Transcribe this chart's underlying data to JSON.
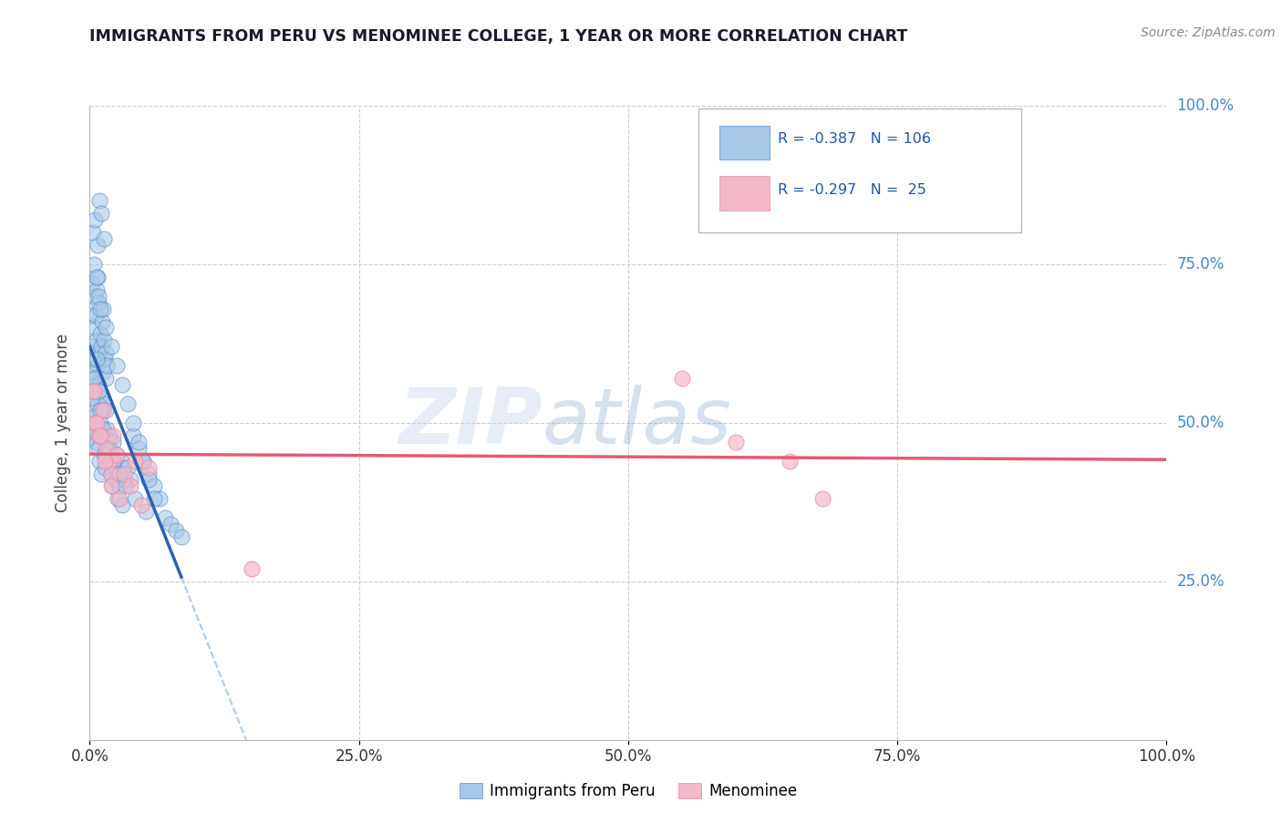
{
  "title": "IMMIGRANTS FROM PERU VS MENOMINEE COLLEGE, 1 YEAR OR MORE CORRELATION CHART",
  "source_text": "Source: ZipAtlas.com",
  "ylabel": "College, 1 year or more",
  "xlim": [
    0,
    100
  ],
  "ylim": [
    0,
    100
  ],
  "xticks": [
    0,
    25,
    50,
    75,
    100
  ],
  "xtick_labels": [
    "0.0%",
    "25.0%",
    "50.0%",
    "75.0%",
    "100.0%"
  ],
  "yticks": [
    0,
    25,
    50,
    75,
    100
  ],
  "ytick_labels_right": [
    "",
    "25.0%",
    "50.0%",
    "75.0%",
    "100.0%"
  ],
  "legend1_label": "Immigrants from Peru",
  "legend2_label": "Menominee",
  "R1": -0.387,
  "N1": 106,
  "R2": -0.297,
  "N2": 25,
  "blue_color": "#a8c8e8",
  "pink_color": "#f4b8c8",
  "blue_edge_color": "#5590c8",
  "pink_edge_color": "#e888a8",
  "blue_line_color": "#3060b0",
  "pink_line_color": "#e85878",
  "watermark_zip": "ZIP",
  "watermark_atlas": "atlas",
  "blue_scatter_x": [
    0.1,
    0.2,
    0.3,
    0.4,
    0.5,
    0.6,
    0.7,
    0.8,
    0.9,
    1.0,
    1.1,
    1.2,
    1.3,
    1.4,
    1.5,
    0.15,
    0.25,
    0.35,
    0.45,
    0.55,
    0.65,
    0.75,
    0.85,
    0.95,
    1.05,
    1.15,
    1.25,
    1.35,
    1.45,
    1.55,
    0.1,
    0.2,
    0.3,
    0.4,
    0.5,
    0.6,
    0.7,
    0.8,
    0.9,
    1.0,
    1.1,
    1.2,
    1.3,
    1.4,
    1.5,
    1.6,
    1.7,
    1.8,
    1.9,
    2.0,
    2.1,
    2.2,
    2.3,
    2.4,
    2.5,
    2.6,
    2.7,
    2.8,
    2.9,
    3.0,
    3.1,
    3.2,
    3.5,
    3.8,
    4.0,
    4.5,
    5.0,
    5.5,
    6.0,
    6.5,
    0.3,
    0.5,
    0.7,
    0.9,
    1.1,
    1.3,
    0.4,
    0.6,
    0.8,
    1.0,
    1.5,
    2.0,
    2.5,
    3.0,
    3.5,
    4.0,
    4.5,
    5.0,
    5.5,
    6.0,
    7.0,
    7.5,
    8.0,
    8.5,
    0.2,
    0.4,
    0.6,
    0.8,
    1.0,
    1.2,
    1.8,
    2.2,
    2.8,
    3.3,
    4.2,
    5.2
  ],
  "blue_scatter_y": [
    62,
    58,
    55,
    60,
    57,
    63,
    59,
    56,
    61,
    54,
    52,
    58,
    53,
    60,
    57,
    67,
    72,
    65,
    70,
    67,
    71,
    73,
    69,
    64,
    62,
    66,
    68,
    63,
    61,
    59,
    50,
    48,
    52,
    49,
    51,
    47,
    53,
    46,
    44,
    50,
    42,
    48,
    45,
    43,
    52,
    49,
    46,
    48,
    44,
    42,
    40,
    47,
    43,
    41,
    45,
    38,
    42,
    40,
    44,
    37,
    43,
    41,
    43,
    41,
    48,
    46,
    44,
    42,
    40,
    38,
    80,
    82,
    78,
    85,
    83,
    79,
    75,
    73,
    70,
    68,
    65,
    62,
    59,
    56,
    53,
    50,
    47,
    44,
    41,
    38,
    35,
    34,
    33,
    32,
    54,
    57,
    60,
    55,
    52,
    49,
    46,
    44,
    42,
    40,
    38,
    36
  ],
  "pink_scatter_x": [
    0.3,
    0.5,
    0.8,
    1.2,
    1.5,
    1.8,
    2.0,
    2.2,
    2.5,
    2.8,
    3.2,
    3.8,
    4.2,
    4.8,
    5.5,
    0.4,
    0.6,
    1.0,
    1.4,
    2.0,
    55.0,
    60.0,
    65.0,
    68.0,
    15.0
  ],
  "pink_scatter_y": [
    55,
    50,
    48,
    52,
    46,
    44,
    42,
    48,
    45,
    38,
    42,
    40,
    44,
    37,
    43,
    55,
    50,
    48,
    44,
    40,
    57,
    47,
    44,
    38,
    27
  ],
  "blue_line_x_start": 0.0,
  "blue_line_x_end": 8.5,
  "blue_line_x_dash_end": 65.0,
  "pink_line_x_start": 0.0,
  "pink_line_x_end": 100.0,
  "pink_line_y_start": 52.0,
  "pink_line_y_end": 42.0
}
